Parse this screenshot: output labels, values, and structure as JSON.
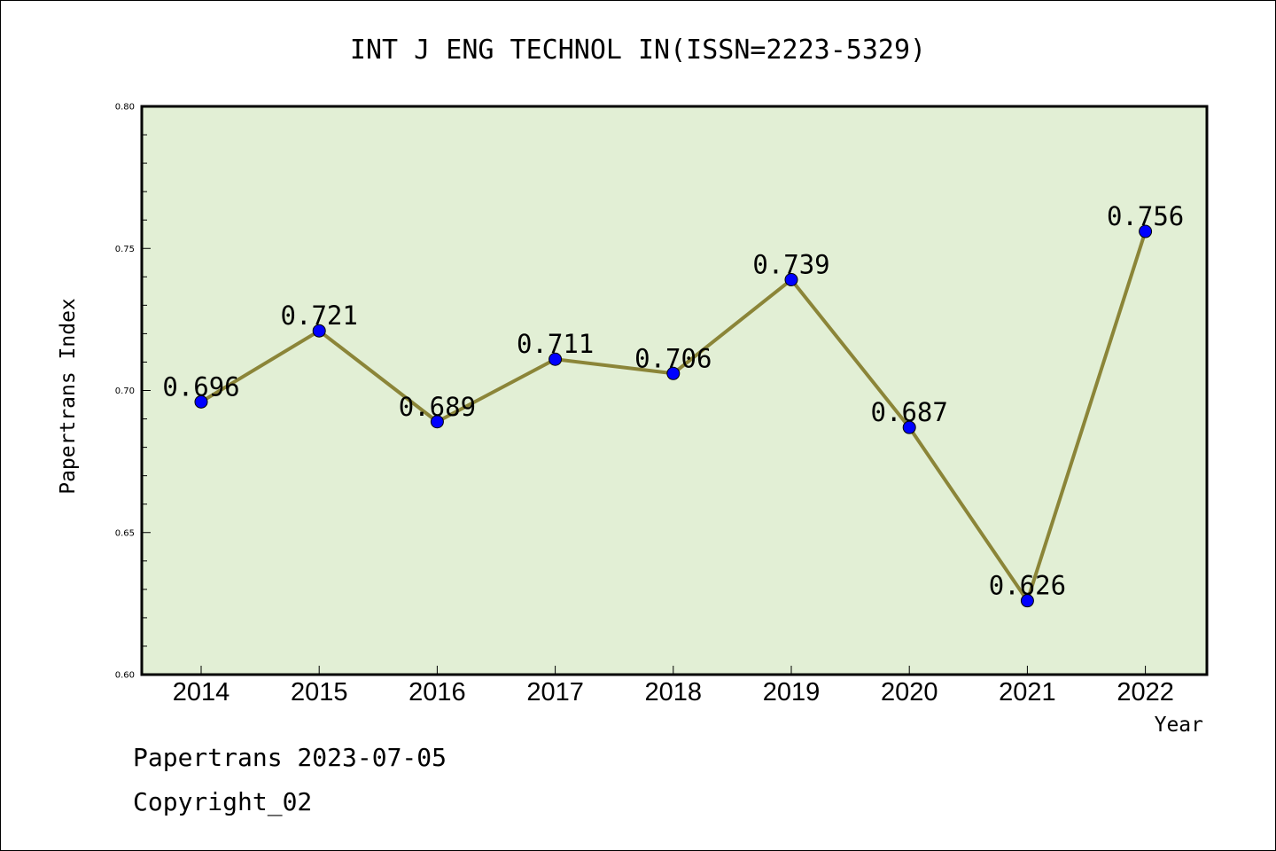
{
  "chart_data": {
    "type": "line",
    "title": "INT J ENG TECHNOL IN(ISSN=2223-5329)",
    "xlabel": "Year",
    "ylabel": "Papertrans Index",
    "x": [
      "2014",
      "2015",
      "2016",
      "2017",
      "2018",
      "2019",
      "2020",
      "2021",
      "2022"
    ],
    "series": [
      {
        "values": [
          0.696,
          0.721,
          0.689,
          0.711,
          0.706,
          0.739,
          0.687,
          0.626,
          0.756
        ],
        "labels": [
          "0.696",
          "0.721",
          "0.689",
          "0.711",
          "0.706",
          "0.739",
          "0.687",
          "0.626",
          "0.756"
        ]
      }
    ],
    "ylim": [
      0.6,
      0.8
    ],
    "yticks": [
      "0.60",
      "0.65",
      "0.70",
      "0.75",
      "0.80"
    ],
    "grid": false,
    "legend": "none",
    "colors": {
      "plot_background": "#e2efd5",
      "line": "#8b8538",
      "marker": "#0000ff"
    }
  },
  "footer": {
    "line1": "Papertrans 2023-07-05",
    "line2": "Copyright_02"
  }
}
